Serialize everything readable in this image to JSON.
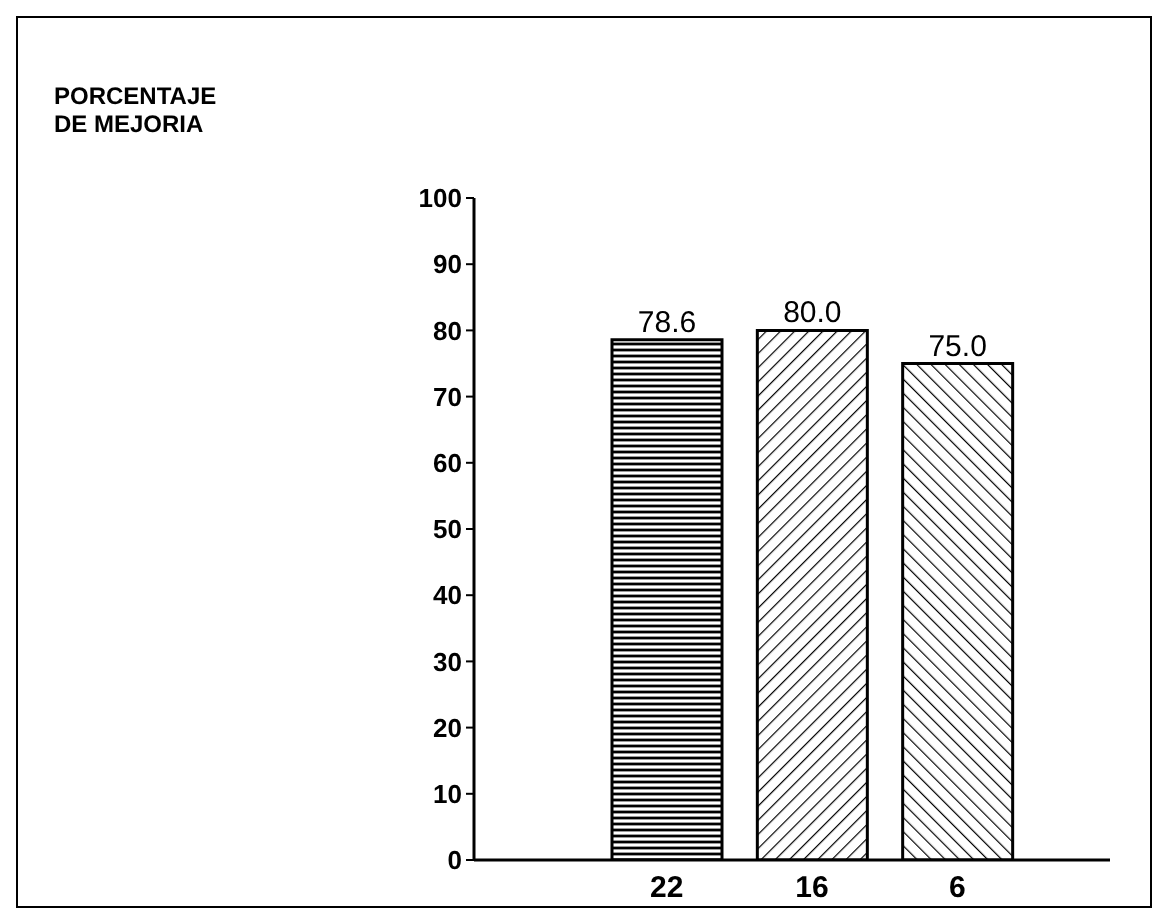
{
  "chart_data": {
    "type": "bar",
    "annotations": [
      "PORCENTAJE DE MEJORIA"
    ],
    "categories": [
      "22",
      "16",
      "6"
    ],
    "values": [
      78.6,
      80.0,
      75.0
    ],
    "value_labels": [
      "78.6",
      "80.0",
      "75.0"
    ],
    "color": "#000000",
    "ylim": [
      0,
      100
    ],
    "yticks": [
      0,
      10,
      20,
      30,
      40,
      50,
      60,
      70,
      80,
      90,
      100
    ]
  }
}
